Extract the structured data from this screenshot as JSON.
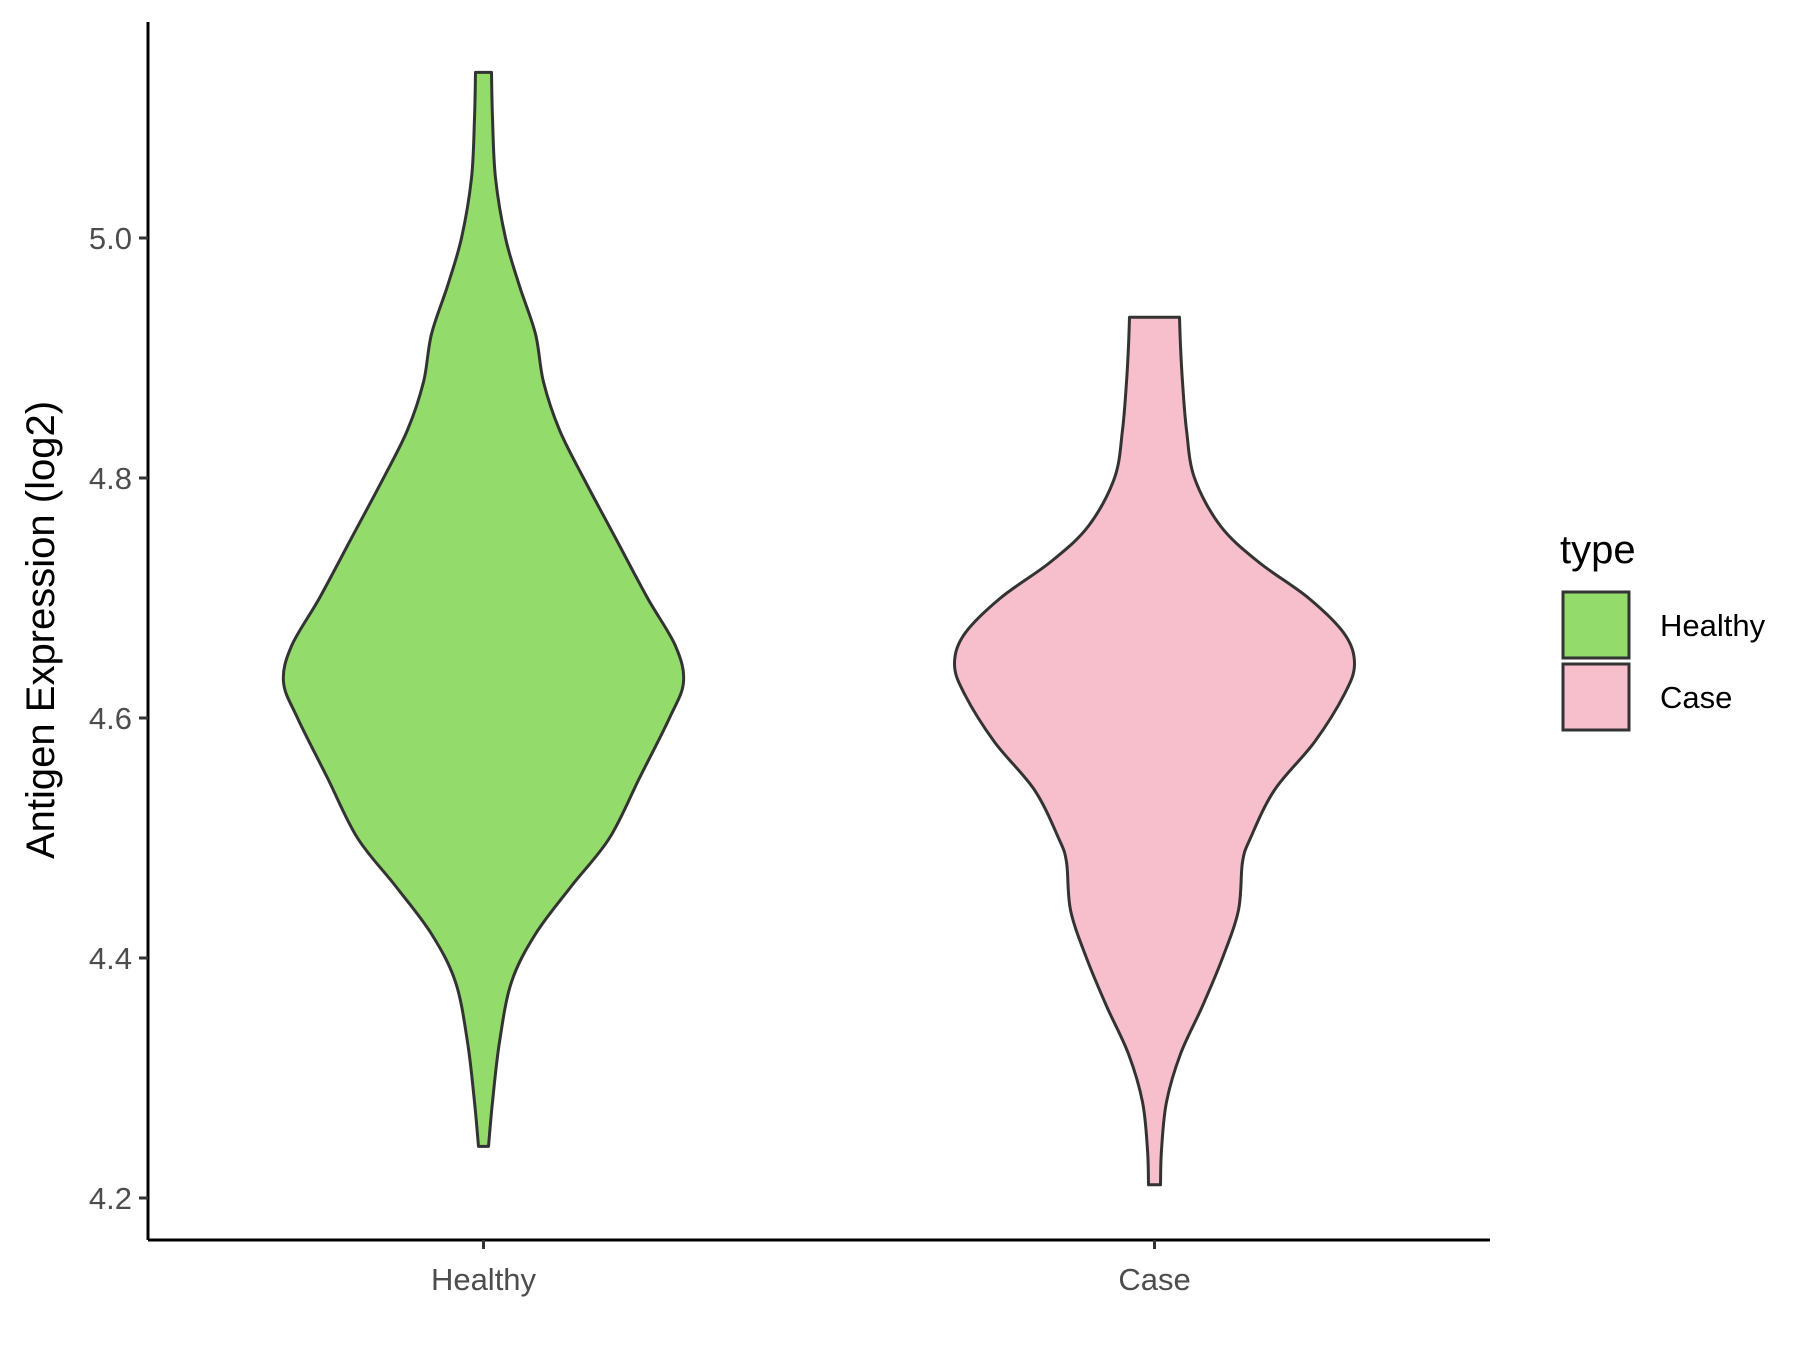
{
  "chart_data": {
    "type": "violin",
    "ylabel": "Antigen Expression (log2)",
    "xlabel": "",
    "ylim": [
      4.165,
      5.18
    ],
    "y_ticks": [
      "4.2",
      "4.4",
      "4.6",
      "4.8",
      "5.0"
    ],
    "y_tick_values": [
      4.2,
      4.4,
      4.6,
      4.8,
      5.0
    ],
    "categories": [
      "Healthy",
      "Case"
    ],
    "legend": {
      "title": "type",
      "placement": "right",
      "entries": [
        {
          "label": "Healthy",
          "color": "#93dc6b"
        },
        {
          "label": "Case",
          "color": "#f7bfcb"
        }
      ]
    },
    "outline_color": "#333333",
    "series": [
      {
        "name": "Healthy",
        "color": "#93dc6b",
        "min": 4.243,
        "max": 5.138,
        "density_profile": [
          [
            4.243,
            0.025
          ],
          [
            4.28,
            0.045
          ],
          [
            4.33,
            0.08
          ],
          [
            4.38,
            0.14
          ],
          [
            4.42,
            0.26
          ],
          [
            4.46,
            0.44
          ],
          [
            4.5,
            0.63
          ],
          [
            4.55,
            0.78
          ],
          [
            4.6,
            0.93
          ],
          [
            4.63,
            1.0
          ],
          [
            4.66,
            0.96
          ],
          [
            4.7,
            0.82
          ],
          [
            4.75,
            0.66
          ],
          [
            4.8,
            0.5
          ],
          [
            4.84,
            0.38
          ],
          [
            4.88,
            0.3
          ],
          [
            4.92,
            0.26
          ],
          [
            4.96,
            0.18
          ],
          [
            5.0,
            0.11
          ],
          [
            5.05,
            0.06
          ],
          [
            5.1,
            0.045
          ],
          [
            5.138,
            0.04
          ]
        ]
      },
      {
        "name": "Case",
        "color": "#f7bfcb",
        "min": 4.211,
        "max": 4.934,
        "density_profile": [
          [
            4.211,
            0.03
          ],
          [
            4.24,
            0.035
          ],
          [
            4.28,
            0.06
          ],
          [
            4.32,
            0.13
          ],
          [
            4.36,
            0.24
          ],
          [
            4.4,
            0.34
          ],
          [
            4.44,
            0.42
          ],
          [
            4.48,
            0.44
          ],
          [
            4.5,
            0.48
          ],
          [
            4.54,
            0.6
          ],
          [
            4.58,
            0.8
          ],
          [
            4.62,
            0.95
          ],
          [
            4.645,
            1.0
          ],
          [
            4.67,
            0.95
          ],
          [
            4.7,
            0.77
          ],
          [
            4.73,
            0.52
          ],
          [
            4.76,
            0.33
          ],
          [
            4.8,
            0.2
          ],
          [
            4.84,
            0.16
          ],
          [
            4.88,
            0.14
          ],
          [
            4.91,
            0.13
          ],
          [
            4.934,
            0.125
          ]
        ]
      }
    ]
  }
}
